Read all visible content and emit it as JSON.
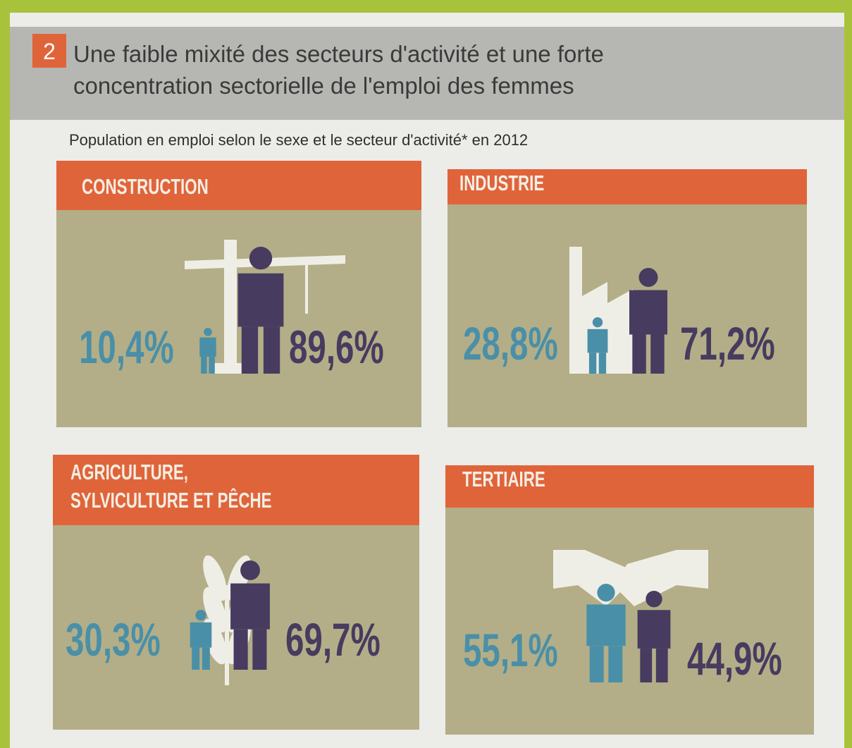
{
  "header": {
    "number": "2",
    "title": [
      "Une faible mixité des secteurs d'activité et une forte",
      "concentration sectorielle de l'emploi des femmes"
    ]
  },
  "subtitle": "Population en emploi selon le sexe et le secteur d'activité* en 2012",
  "panels": [
    {
      "title": [
        "CONSTRUCTION"
      ],
      "women": "10,4%",
      "men": "89,6%"
    },
    {
      "title": [
        "INDUSTRIE"
      ],
      "women": "28,8%",
      "men": "71,2%"
    },
    {
      "title": [
        "AGRICULTURE,",
        "SYLVICULTURE ET PÊCHE"
      ],
      "women": "30,3%",
      "men": "69,7%"
    },
    {
      "title": [
        "TERTIAIRE"
      ],
      "women": "55,1%",
      "men": "44,9%"
    }
  ]
}
